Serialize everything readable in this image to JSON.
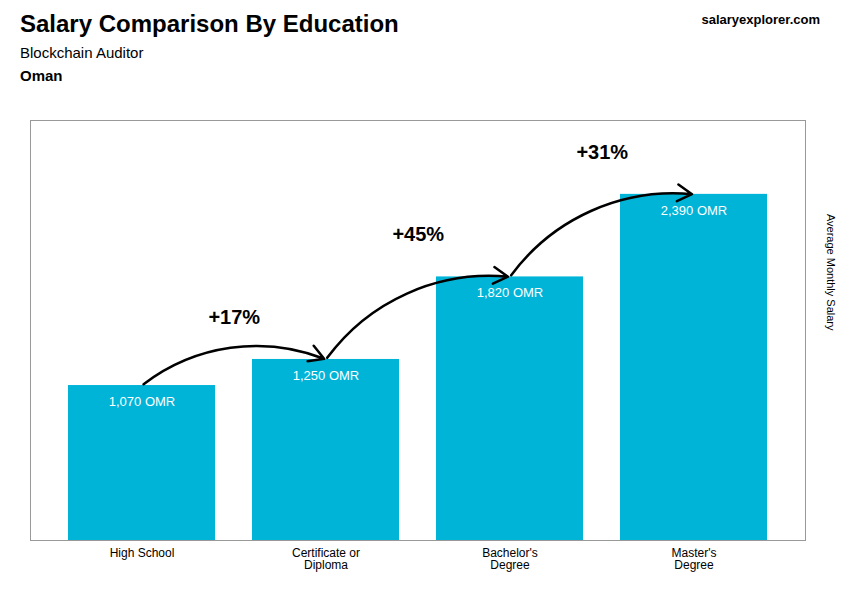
{
  "chart_data": {
    "type": "bar",
    "title": "Salary Comparison By Education",
    "subtitle": "Blockchain Auditor",
    "country": "Oman",
    "watermark": "salaryexplorer.com",
    "ylabel": "Average Monthly Salary",
    "categories": [
      "High School",
      "Certificate or\nDiploma",
      "Bachelor's\nDegree",
      "Master's\nDegree"
    ],
    "values": [
      1070,
      1250,
      1820,
      2390
    ],
    "value_labels": [
      "1,070 OMR",
      "1,250 OMR",
      "1,820 OMR",
      "2,390 OMR"
    ],
    "data_labels": true,
    "annotations": [
      "+17%",
      "+45%",
      "+31%"
    ],
    "color": "#00b4d8",
    "ylim": [
      0,
      2900
    ],
    "tick_labels": "x"
  }
}
